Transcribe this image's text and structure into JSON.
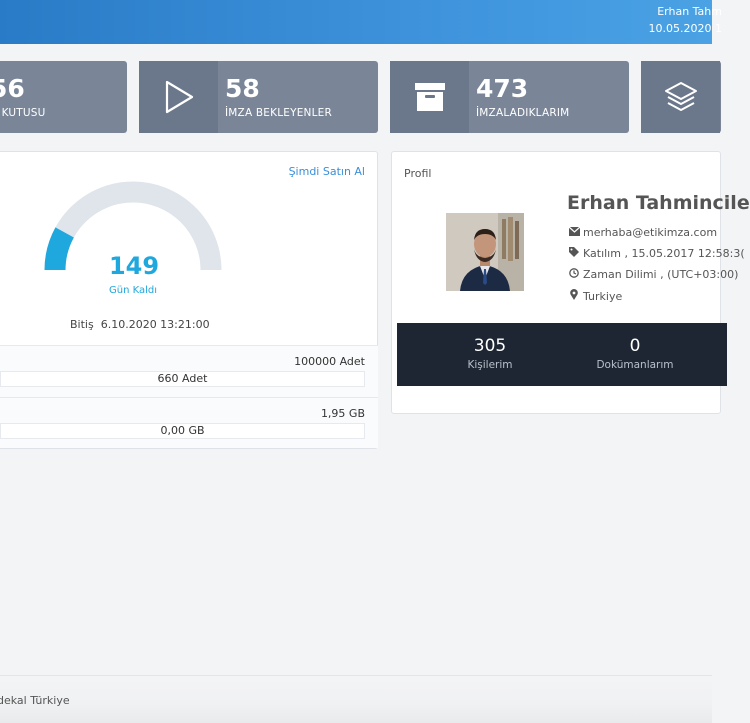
{
  "header": {
    "user_name": "Erhan Tahm",
    "datetime": "10.05.2020 1"
  },
  "stats": [
    {
      "value": "56",
      "label": "N KUTUSU",
      "icon": "inbox-icon"
    },
    {
      "value": "58",
      "label": "İMZA BEKLEYENLER",
      "icon": "play-icon"
    },
    {
      "value": "473",
      "label": "İMZALADIKLARIM",
      "icon": "archive-icon"
    },
    {
      "value": "",
      "label": "",
      "icon": "layers-icon"
    }
  ],
  "subscription": {
    "buy_link": "Şimdi Satın Al",
    "days_left": "149",
    "days_left_label": "Gün Kaldı",
    "days_left_fraction": 0.16,
    "end_label": "Bitiş",
    "end_date": "6.10.2020 13:21:00",
    "gauge_color": "#1fa8de",
    "gauge_track_color": "#dfe5ea",
    "doc_quota_total": "100000 Adet",
    "doc_quota_used": "660 Adet",
    "storage_total": "1,95 GB",
    "storage_used": "0,00 GB"
  },
  "profile": {
    "title": "Profil",
    "name": "Erhan Tahmincile",
    "email": "merhaba@etikimza.com",
    "joined": "Katılım , 15.05.2017 12:58:3(",
    "timezone": "Zaman Dilimi , (UTC+03:00)",
    "country": "Turkiye",
    "contacts_count": "305",
    "contacts_label": "Kişilerim",
    "documents_count": "0",
    "documents_label": "Dokümanlarım"
  },
  "footer": {
    "text": "dekal Türkiye"
  }
}
